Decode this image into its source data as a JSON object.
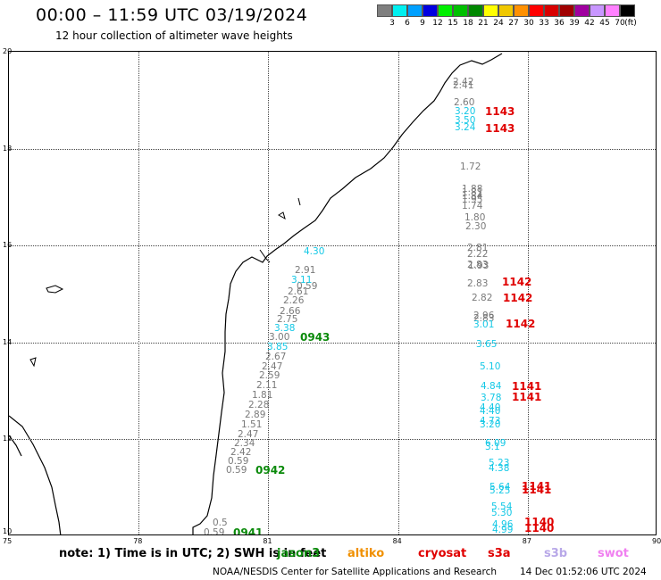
{
  "header": {
    "title": "00:00 – 11:59 UTC 03/19/2024",
    "subtitle": "12 hour collection of altimeter wave heights"
  },
  "color_scale": {
    "swatches": [
      "#7f7f7f",
      "#00f0f0",
      "#00a0ff",
      "#0000e0",
      "#00f000",
      "#00c000",
      "#008800",
      "#ffff00",
      "#f0c800",
      "#ff9000",
      "#ff0000",
      "#d80000",
      "#a00000",
      "#a000a0",
      "#c896ff",
      "#ff80ff",
      "#000000"
    ],
    "labels": [
      "3",
      "6",
      "9",
      "12",
      "15",
      "18",
      "21",
      "24",
      "27",
      "30",
      "33",
      "36",
      "39",
      "42",
      "45",
      "70",
      "(ft)"
    ]
  },
  "axes": {
    "x_ticks": [
      "75",
      "78",
      "81",
      "84",
      "87",
      "90"
    ],
    "y_ticks": [
      "20",
      "18",
      "16",
      "14",
      "12",
      "10"
    ]
  },
  "track_gray": [
    "2.42",
    "2.41",
    "2.60",
    "1.72",
    "1.88",
    "1.81",
    "1.84",
    "1.95",
    "1.74",
    "1.80",
    "2.30",
    "2.81",
    "2.22",
    "2.83",
    "1.93",
    "2.83",
    "2.82",
    "2.96",
    "2.83",
    "0.59",
    "2.91",
    "2.61",
    "2.26",
    "2.66",
    "2.75",
    "3.00",
    "2.67",
    "2.47",
    "2.59",
    "2.11",
    "1.81",
    "2.28",
    "2.89",
    "1.51",
    "2.47",
    "2.34",
    "2.42",
    "0.59",
    "0.59",
    "0.5",
    "0.59"
  ],
  "track_cyan": [
    "3.20",
    "3.50",
    "3.24",
    "4.30",
    "3.11",
    "3.38",
    "3.85",
    "3.01",
    "3.65",
    "5.10",
    "4.84",
    "3.78",
    "4.40",
    "4.40",
    "4.73",
    "3.20",
    "6.09",
    "3.1",
    "5.23",
    "4.38",
    "5.64",
    "5.25",
    "5.54",
    "5.30",
    "4.96",
    "4.99"
  ],
  "pass_times_red": [
    "1143",
    "1143",
    "1142",
    "1142",
    "1142",
    "1141",
    "1141",
    "1141",
    "1141",
    "1140",
    "1140"
  ],
  "pass_times_green": [
    "0943",
    "0942",
    "0941"
  ],
  "footer": {
    "note": "note:  1) Time is in UTC;  2) SWH is in feet",
    "satellites": [
      {
        "name": "jason3",
        "color": "#0a8a0a"
      },
      {
        "name": "altiko",
        "color": "#f09000"
      },
      {
        "name": "cryosat",
        "color": "#e00000"
      },
      {
        "name": "s3a",
        "color": "#e00000"
      },
      {
        "name": "s3b",
        "color": "#b8a8e8"
      },
      {
        "name": "swot",
        "color": "#f080f0"
      }
    ],
    "credit": "NOAA/NESDIS Center for Satellite Applications and Research",
    "generated": "14 Dec 01:52:06 UTC 2024"
  }
}
